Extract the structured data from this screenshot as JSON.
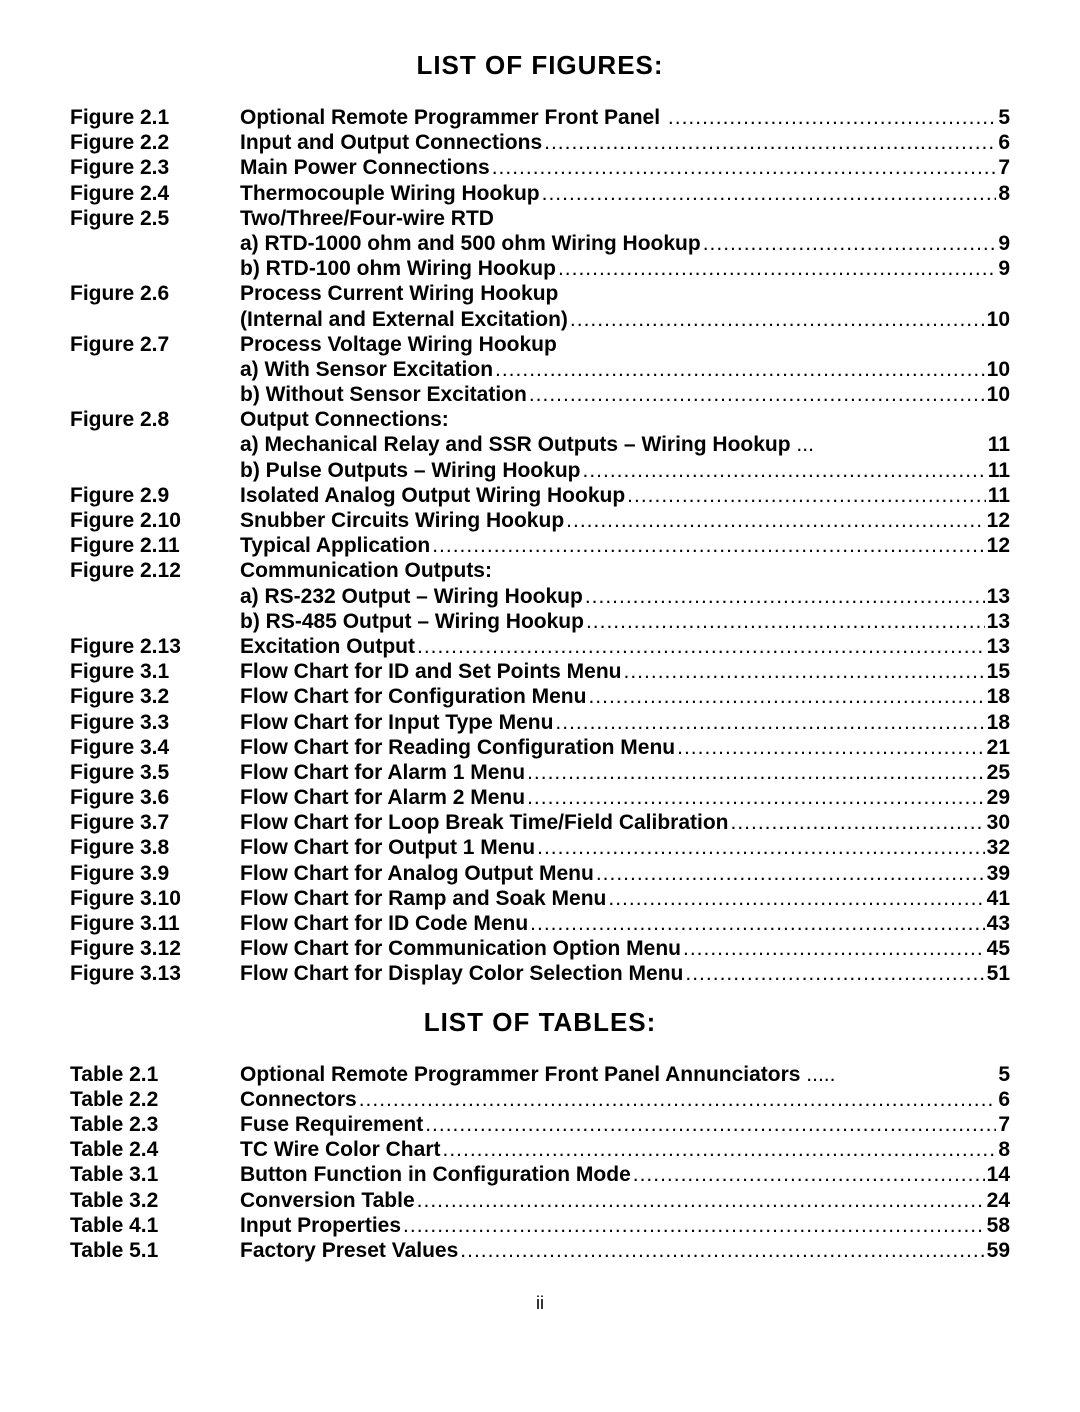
{
  "headings": {
    "figures": "LIST OF FIGURES:",
    "tables": "LIST OF TABLES:"
  },
  "figures": [
    {
      "label": "Figure 2.1",
      "title": "Optional Remote Programmer Front Panel",
      "page": "5",
      "space": true
    },
    {
      "label": "Figure 2.2",
      "title": "Input and Output Connections",
      "page": "6"
    },
    {
      "label": "Figure 2.3",
      "title": "Main Power Connections",
      "page": "7"
    },
    {
      "label": "Figure 2.4",
      "title": "Thermocouple Wiring Hookup",
      "page": "8"
    },
    {
      "label": "Figure 2.5",
      "title": "Two/Three/Four-wire RTD",
      "header": true,
      "subs": [
        {
          "title": "a)  RTD-1000 ohm and 500 ohm Wiring Hookup",
          "page": "9"
        },
        {
          "title": "b)  RTD-100 ohm Wiring Hookup",
          "page": "9"
        }
      ]
    },
    {
      "label": "Figure 2.6",
      "title": "Process Current Wiring Hookup",
      "header": true,
      "subs": [
        {
          "title": "(Internal and External Excitation)",
          "page": "10",
          "noindent": true
        }
      ]
    },
    {
      "label": "Figure 2.7",
      "title": "Process Voltage Wiring Hookup",
      "header": true,
      "subs": [
        {
          "title": "a)  With Sensor Excitation",
          "page": "10"
        },
        {
          "title": "b)  Without Sensor Excitation",
          "page": "10"
        }
      ]
    },
    {
      "label": "Figure 2.8",
      "title": "Output Connections:",
      "header": true,
      "subs": [
        {
          "title": "a)  Mechanical Relay and SSR Outputs – Wiring Hookup",
          "page": "11",
          "tight": true
        },
        {
          "title": "b)  Pulse Outputs – Wiring Hookup",
          "page": "11"
        }
      ]
    },
    {
      "label": "Figure 2.9",
      "title": "Isolated Analog Output Wiring Hookup",
      "page": "11"
    },
    {
      "label": "Figure 2.10",
      "title": "Snubber Circuits Wiring Hookup",
      "page": "12"
    },
    {
      "label": "Figure 2.11",
      "title": "Typical Application",
      "page": "12"
    },
    {
      "label": "Figure 2.12",
      "title": "Communication Outputs:",
      "header": true,
      "subs": [
        {
          "title": "a)  RS-232 Output – Wiring Hookup",
          "page": "13"
        },
        {
          "title": "b)  RS-485 Output – Wiring Hookup",
          "page": "13"
        }
      ]
    },
    {
      "label": "Figure 2.13",
      "title": "Excitation Output",
      "page": "13"
    },
    {
      "label": "Figure 3.1",
      "title": "Flow Chart for ID and Set Points Menu",
      "page": "15"
    },
    {
      "label": "Figure 3.2",
      "title": "Flow Chart for Configuration Menu",
      "page": "18"
    },
    {
      "label": "Figure 3.3",
      "title": "Flow Chart for Input Type Menu",
      "page": "18"
    },
    {
      "label": "Figure 3.4",
      "title": "Flow Chart for Reading Configuration Menu",
      "page": "21"
    },
    {
      "label": "Figure 3.5",
      "title": "Flow Chart for Alarm 1 Menu",
      "page": "25"
    },
    {
      "label": "Figure 3.6",
      "title": "Flow Chart for Alarm 2 Menu",
      "page": "29"
    },
    {
      "label": "Figure 3.7",
      "title": "Flow Chart for Loop Break Time/Field Calibration",
      "page": "30"
    },
    {
      "label": "Figure 3.8",
      "title": "Flow Chart for Output 1 Menu",
      "page": "32"
    },
    {
      "label": "Figure 3.9",
      "title": "Flow Chart for Analog Output Menu",
      "page": "39"
    },
    {
      "label": "Figure 3.10",
      "title": "Flow Chart for Ramp and Soak Menu",
      "page": "41"
    },
    {
      "label": "Figure 3.11",
      "title": "Flow Chart for ID Code Menu",
      "page": "43"
    },
    {
      "label": "Figure 3.12",
      "title": "Flow Chart for Communication Option Menu",
      "page": "45"
    },
    {
      "label": "Figure 3.13",
      "title": "Flow Chart for Display Color Selection Menu",
      "page": "51"
    }
  ],
  "tables": [
    {
      "label": "Table 2.1",
      "title": "Optional Remote Programmer Front Panel Annunciators",
      "page": "5",
      "tight": true
    },
    {
      "label": "Table 2.2",
      "title": "Connectors",
      "page": "6"
    },
    {
      "label": "Table 2.3",
      "title": "Fuse Requirement",
      "page": "7"
    },
    {
      "label": "Table 2.4",
      "title": "TC Wire Color Chart",
      "page": "8"
    },
    {
      "label": "Table 3.1",
      "title": "Button Function in Configuration Mode",
      "page": "14"
    },
    {
      "label": "Table 3.2",
      "title": "Conversion Table",
      "page": "24"
    },
    {
      "label": "Table 4.1",
      "title": "Input Properties",
      "page": "58"
    },
    {
      "label": "Table 5.1",
      "title": "Factory Preset Values",
      "page": "59"
    }
  ],
  "pageNumber": "ii",
  "dotString": "...................................................................................................................................."
}
